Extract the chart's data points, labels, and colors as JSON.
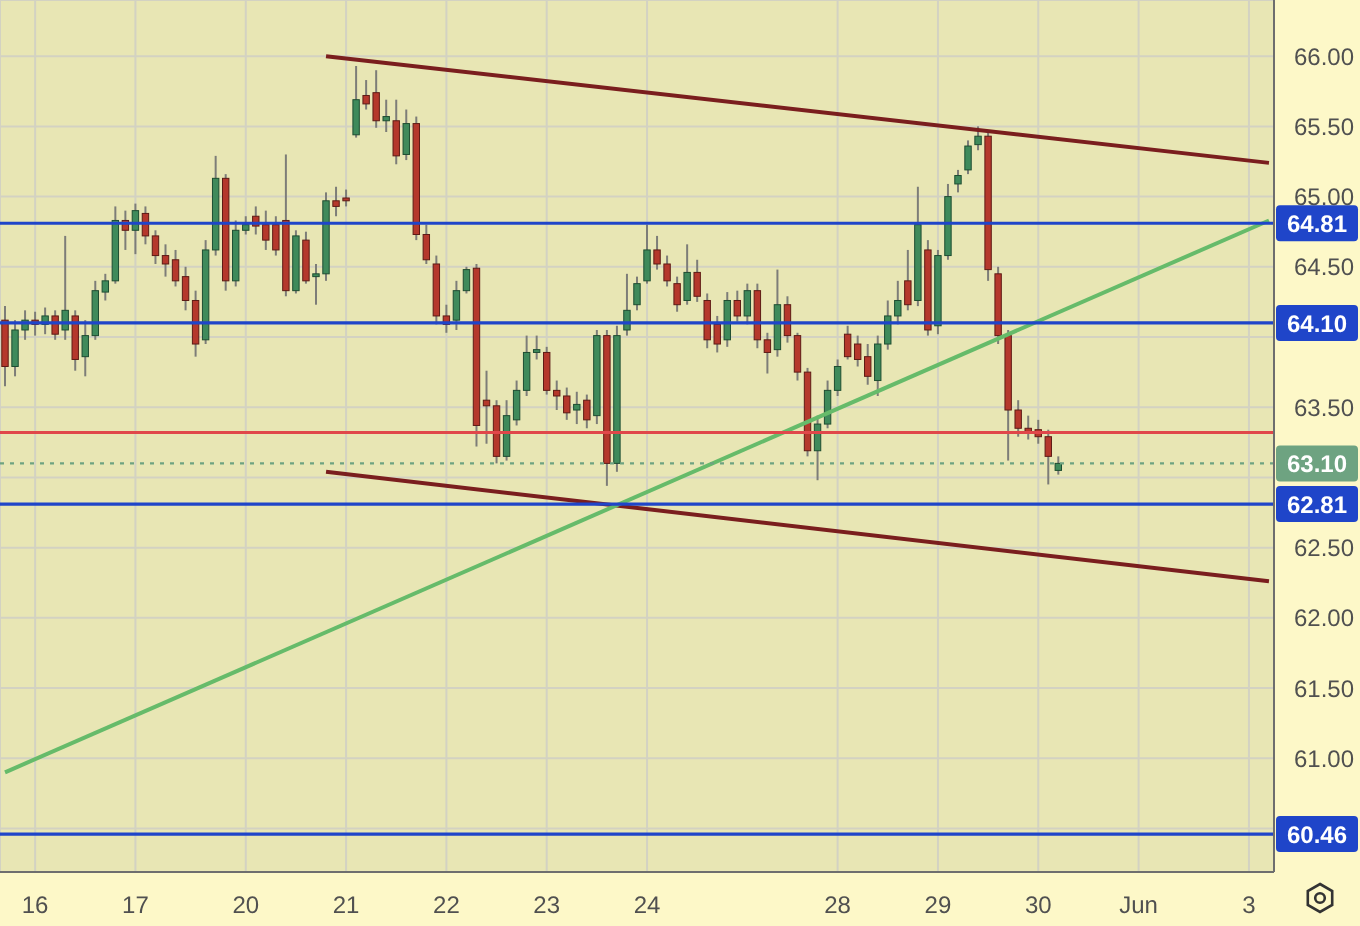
{
  "chart_data": {
    "type": "candlestick",
    "categories": [
      null,
      null,
      null,
      "16",
      null,
      null,
      null,
      null,
      null,
      null,
      null,
      null,
      null,
      "17",
      null,
      null,
      null,
      null,
      null,
      null,
      null,
      null,
      null,
      null,
      "20",
      null,
      null,
      null,
      null,
      null,
      null,
      null,
      null,
      null,
      "21",
      null,
      null,
      null,
      null,
      null,
      null,
      null,
      null,
      null,
      "22",
      null,
      null,
      null,
      null,
      null,
      null,
      null,
      null,
      null,
      "23",
      null,
      null,
      null,
      null,
      null,
      null,
      null,
      null,
      null,
      "24",
      null,
      null,
      null,
      null,
      null,
      null,
      null,
      null,
      null,
      null,
      null,
      null,
      null,
      null,
      null,
      null,
      null,
      null,
      "28",
      null,
      null,
      null,
      null,
      null,
      null,
      null,
      null,
      null,
      "29",
      null,
      null,
      null,
      null,
      null,
      null,
      null,
      null,
      null,
      "30",
      null,
      null,
      null,
      null,
      null,
      null,
      null,
      null,
      null,
      "Jun",
      null,
      null,
      null,
      null,
      null,
      null,
      null,
      null,
      null,
      null,
      "3",
      null,
      null
    ],
    "ohlc": [
      [
        64.12,
        64.22,
        63.65,
        63.79
      ],
      [
        63.79,
        64.12,
        63.72,
        64.05
      ],
      [
        64.05,
        64.19,
        63.98,
        64.12
      ],
      [
        64.12,
        64.18,
        64.01,
        64.09
      ],
      [
        64.09,
        64.21,
        64.02,
        64.15
      ],
      [
        64.15,
        64.19,
        63.98,
        64.02
      ],
      [
        64.05,
        64.72,
        63.98,
        64.19
      ],
      [
        64.15,
        64.19,
        63.76,
        63.84
      ],
      [
        63.86,
        64.12,
        63.72,
        64.01
      ],
      [
        64.01,
        64.4,
        63.98,
        64.33
      ],
      [
        64.32,
        64.45,
        64.26,
        64.4
      ],
      [
        64.4,
        64.93,
        64.38,
        64.83
      ],
      [
        64.83,
        64.9,
        64.62,
        64.76
      ],
      [
        64.76,
        64.95,
        64.59,
        64.9
      ],
      [
        64.88,
        64.93,
        64.66,
        64.72
      ],
      [
        64.72,
        64.76,
        64.52,
        64.58
      ],
      [
        64.58,
        64.66,
        64.43,
        64.52
      ],
      [
        64.55,
        64.62,
        64.36,
        64.4
      ],
      [
        64.43,
        64.5,
        64.19,
        64.26
      ],
      [
        64.26,
        64.33,
        63.86,
        63.95
      ],
      [
        63.98,
        64.69,
        63.95,
        64.62
      ],
      [
        64.62,
        65.29,
        64.58,
        65.13
      ],
      [
        65.13,
        65.16,
        64.33,
        64.4
      ],
      [
        64.4,
        64.83,
        64.36,
        64.76
      ],
      [
        64.76,
        64.86,
        64.73,
        64.8
      ],
      [
        64.86,
        64.93,
        64.73,
        64.79
      ],
      [
        64.8,
        64.9,
        64.62,
        64.69
      ],
      [
        64.8,
        64.86,
        64.58,
        64.62
      ],
      [
        64.83,
        65.3,
        64.29,
        64.33
      ],
      [
        64.33,
        64.76,
        64.31,
        64.72
      ],
      [
        64.69,
        64.75,
        64.38,
        64.4
      ],
      [
        64.43,
        64.52,
        64.23,
        64.45
      ],
      [
        64.45,
        65.03,
        64.4,
        64.97
      ],
      [
        64.97,
        65.07,
        64.86,
        64.93
      ],
      [
        64.99,
        65.05,
        64.93,
        64.97
      ],
      [
        65.44,
        65.93,
        65.42,
        65.69
      ],
      [
        65.72,
        65.83,
        65.62,
        65.66
      ],
      [
        65.74,
        65.9,
        65.49,
        65.54
      ],
      [
        65.54,
        65.69,
        65.46,
        65.57
      ],
      [
        65.54,
        65.69,
        65.23,
        65.29
      ],
      [
        65.3,
        65.62,
        65.26,
        65.52
      ],
      [
        65.52,
        65.57,
        64.69,
        64.73
      ],
      [
        64.73,
        64.8,
        64.52,
        64.55
      ],
      [
        64.52,
        64.58,
        64.09,
        64.15
      ],
      [
        64.15,
        64.23,
        64.03,
        64.09
      ],
      [
        64.12,
        64.4,
        64.05,
        64.33
      ],
      [
        64.33,
        64.5,
        64.31,
        64.48
      ],
      [
        64.49,
        64.52,
        63.22,
        63.37
      ],
      [
        63.55,
        63.76,
        63.24,
        63.51
      ],
      [
        63.51,
        63.55,
        63.1,
        63.15
      ],
      [
        63.15,
        63.55,
        63.12,
        63.44
      ],
      [
        63.41,
        63.69,
        63.37,
        63.62
      ],
      [
        63.62,
        64.01,
        63.58,
        63.89
      ],
      [
        63.89,
        64.01,
        63.84,
        63.91
      ],
      [
        63.89,
        63.93,
        63.59,
        63.62
      ],
      [
        63.62,
        63.69,
        63.48,
        63.58
      ],
      [
        63.58,
        63.64,
        63.41,
        63.46
      ],
      [
        63.48,
        63.61,
        63.38,
        63.52
      ],
      [
        63.55,
        63.59,
        63.35,
        63.41
      ],
      [
        63.44,
        64.05,
        63.38,
        64.01
      ],
      [
        64.01,
        64.05,
        62.94,
        63.1
      ],
      [
        63.1,
        64.08,
        63.04,
        64.01
      ],
      [
        64.05,
        64.45,
        64.01,
        64.19
      ],
      [
        64.23,
        64.43,
        64.19,
        64.38
      ],
      [
        64.4,
        64.8,
        64.38,
        64.62
      ],
      [
        64.62,
        64.72,
        64.48,
        64.52
      ],
      [
        64.52,
        64.58,
        64.36,
        64.4
      ],
      [
        64.38,
        64.43,
        64.18,
        64.23
      ],
      [
        64.26,
        64.66,
        64.23,
        64.46
      ],
      [
        64.46,
        64.55,
        64.25,
        64.29
      ],
      [
        64.26,
        64.31,
        63.92,
        63.98
      ],
      [
        64.09,
        64.15,
        63.89,
        63.95
      ],
      [
        63.98,
        64.32,
        63.93,
        64.26
      ],
      [
        64.26,
        64.33,
        64.11,
        64.15
      ],
      [
        64.15,
        64.38,
        64.09,
        64.33
      ],
      [
        64.33,
        64.38,
        63.92,
        63.98
      ],
      [
        63.98,
        64.03,
        63.74,
        63.89
      ],
      [
        63.91,
        64.48,
        63.86,
        64.23
      ],
      [
        64.23,
        64.29,
        63.96,
        64.01
      ],
      [
        64.01,
        64.03,
        63.69,
        63.75
      ],
      [
        63.75,
        63.78,
        63.15,
        63.19
      ],
      [
        63.19,
        63.44,
        62.98,
        63.38
      ],
      [
        63.38,
        63.69,
        63.35,
        63.62
      ],
      [
        63.62,
        63.84,
        63.58,
        63.79
      ],
      [
        64.02,
        64.08,
        63.84,
        63.86
      ],
      [
        63.95,
        64.01,
        63.79,
        63.84
      ],
      [
        63.86,
        63.95,
        63.66,
        63.72
      ],
      [
        63.69,
        64.01,
        63.58,
        63.95
      ],
      [
        63.95,
        64.26,
        63.91,
        64.15
      ],
      [
        64.15,
        64.4,
        64.09,
        64.26
      ],
      [
        64.4,
        64.62,
        64.19,
        64.23
      ],
      [
        64.26,
        65.07,
        64.22,
        64.8
      ],
      [
        64.62,
        64.69,
        64.01,
        64.05
      ],
      [
        64.08,
        64.62,
        64.02,
        64.58
      ],
      [
        64.58,
        65.09,
        64.55,
        65.0
      ],
      [
        65.09,
        65.19,
        65.03,
        65.15
      ],
      [
        65.19,
        65.4,
        65.16,
        65.36
      ],
      [
        65.37,
        65.5,
        65.33,
        65.43
      ],
      [
        65.43,
        65.47,
        64.4,
        64.48
      ],
      [
        64.45,
        64.5,
        63.95,
        64.01
      ],
      [
        64.01,
        64.05,
        63.12,
        63.48
      ],
      [
        63.48,
        63.55,
        63.29,
        63.35
      ],
      [
        63.35,
        63.44,
        63.27,
        63.32
      ],
      [
        63.34,
        63.41,
        63.24,
        63.29
      ],
      [
        63.29,
        63.34,
        62.95,
        63.15
      ],
      [
        63.05,
        63.15,
        63.02,
        63.1
      ],
      null,
      null,
      null,
      null,
      null,
      null,
      null,
      null,
      null,
      null,
      null,
      null,
      null,
      null,
      null,
      null,
      null,
      null,
      null,
      null,
      null
    ],
    "series": [
      {
        "type": "line",
        "color": "#7a1e1e",
        "values": [
          null,
          null,
          null,
          null,
          null,
          null,
          null,
          null,
          null,
          null,
          null,
          null,
          null,
          null,
          null,
          null,
          null,
          null,
          null,
          null,
          null,
          null,
          null,
          null,
          null,
          null,
          null,
          null,
          null,
          null,
          null,
          null,
          66.0,
          null,
          null,
          null,
          null,
          null,
          null,
          null,
          null,
          null,
          null,
          null,
          null,
          null,
          null,
          null,
          null,
          null,
          null,
          null,
          null,
          null,
          null,
          null,
          null,
          null,
          null,
          null,
          null,
          null,
          null,
          null,
          null,
          null,
          null,
          null,
          null,
          null,
          null,
          null,
          null,
          null,
          null,
          null,
          null,
          null,
          null,
          null,
          null,
          null,
          null,
          null,
          null,
          null,
          null,
          null,
          null,
          null,
          null,
          null,
          null,
          null,
          null,
          null,
          null,
          null,
          null,
          null,
          null,
          null,
          null,
          null,
          null,
          null,
          null,
          null,
          null,
          null,
          null,
          null,
          null,
          null,
          null,
          null,
          null,
          null,
          null,
          null,
          null,
          null,
          null,
          null,
          null,
          null,
          65.24
        ]
      },
      {
        "type": "line",
        "color": "#7a1e1e",
        "values": [
          null,
          null,
          null,
          null,
          null,
          null,
          null,
          null,
          null,
          null,
          null,
          null,
          null,
          null,
          null,
          null,
          null,
          null,
          null,
          null,
          null,
          null,
          null,
          null,
          null,
          null,
          null,
          null,
          null,
          null,
          null,
          null,
          63.04,
          null,
          null,
          null,
          null,
          null,
          null,
          null,
          null,
          null,
          null,
          null,
          null,
          null,
          null,
          null,
          null,
          null,
          null,
          null,
          null,
          null,
          null,
          null,
          null,
          null,
          null,
          null,
          null,
          null,
          null,
          null,
          null,
          null,
          null,
          null,
          null,
          null,
          null,
          null,
          null,
          null,
          null,
          null,
          null,
          null,
          null,
          null,
          null,
          null,
          null,
          null,
          null,
          null,
          null,
          null,
          null,
          null,
          null,
          null,
          null,
          null,
          null,
          null,
          null,
          null,
          null,
          null,
          null,
          null,
          null,
          null,
          null,
          null,
          null,
          null,
          null,
          null,
          null,
          null,
          null,
          null,
          null,
          null,
          null,
          null,
          null,
          null,
          null,
          null,
          null,
          null,
          null,
          null,
          62.26
        ]
      },
      {
        "type": "line",
        "color": "#66bb6a",
        "values": [
          60.9,
          null,
          null,
          null,
          null,
          null,
          null,
          null,
          null,
          null,
          null,
          null,
          null,
          null,
          null,
          null,
          null,
          null,
          null,
          null,
          null,
          null,
          null,
          null,
          null,
          null,
          null,
          null,
          null,
          null,
          null,
          null,
          null,
          null,
          null,
          null,
          null,
          null,
          null,
          null,
          null,
          null,
          null,
          null,
          null,
          null,
          null,
          null,
          null,
          null,
          null,
          null,
          null,
          null,
          null,
          null,
          null,
          null,
          null,
          null,
          null,
          null,
          null,
          null,
          null,
          null,
          null,
          null,
          null,
          null,
          null,
          null,
          null,
          null,
          null,
          null,
          null,
          null,
          null,
          null,
          null,
          null,
          null,
          null,
          null,
          null,
          null,
          null,
          null,
          null,
          null,
          null,
          null,
          null,
          null,
          null,
          null,
          null,
          null,
          null,
          null,
          null,
          null,
          null,
          null,
          null,
          null,
          null,
          null,
          null,
          null,
          null,
          null,
          null,
          null,
          null,
          null,
          null,
          null,
          null,
          null,
          null,
          null,
          null,
          null,
          null,
          64.83
        ]
      }
    ],
    "ylim": [
      60.19,
      66.4
    ],
    "yticks": [
      {
        "value": 60.5,
        "label": null
      },
      {
        "value": 61,
        "label": "61.00"
      },
      {
        "value": 61.5,
        "label": "61.50"
      },
      {
        "value": 62,
        "label": "62.00"
      },
      {
        "value": 62.5,
        "label": "62.50"
      },
      {
        "value": 63,
        "label": null
      },
      {
        "value": 63.5,
        "label": "63.50"
      },
      {
        "value": 64,
        "label": null
      },
      {
        "value": 64.5,
        "label": "64.50"
      },
      {
        "value": 65,
        "label": "65.00"
      },
      {
        "value": 65.5,
        "label": "65.50"
      },
      {
        "value": 66,
        "label": "66.00"
      }
    ],
    "ref_lines": [
      {
        "axis": "y",
        "value": 64.81,
        "label": "64.81",
        "color": "#1f45c9"
      },
      {
        "axis": "y",
        "value": 64.1,
        "label": "64.10",
        "color": "#1f45c9"
      },
      {
        "axis": "y",
        "value": 62.81,
        "label": "62.81",
        "color": "#1f45c9"
      },
      {
        "axis": "y",
        "value": 60.46,
        "label": "60.46",
        "color": "#1f45c9"
      },
      {
        "axis": "y",
        "value": 63.1,
        "label": "63.10",
        "color": "#6ea381",
        "line_style": "dotted"
      },
      {
        "axis": "y",
        "value": 63.32,
        "color": "#e0474a"
      }
    ],
    "grid": true
  }
}
